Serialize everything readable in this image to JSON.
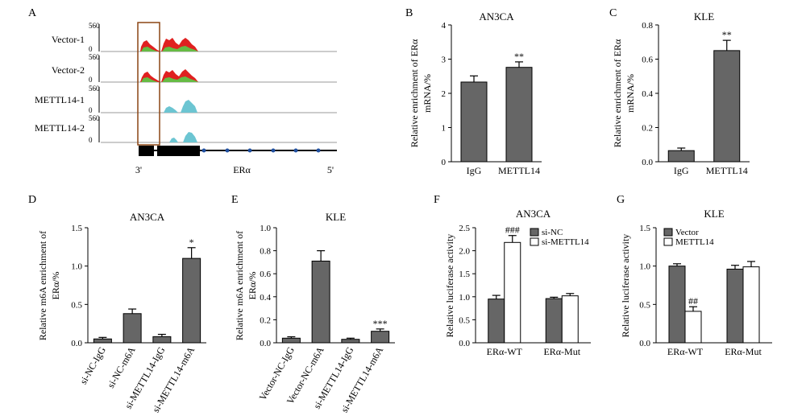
{
  "figure": {
    "panel_labels": [
      "A",
      "B",
      "C",
      "D",
      "E",
      "F",
      "G"
    ]
  },
  "panel_a": {
    "tracks": [
      {
        "name": "Vector-1",
        "max": "560",
        "min": "0",
        "color": "#e02020",
        "base_color": "#66bb44"
      },
      {
        "name": "Vector-2",
        "max": "560",
        "min": "0",
        "color": "#e02020",
        "base_color": "#66bb44"
      },
      {
        "name": "METTL14-1",
        "max": "560",
        "min": "0",
        "color": "#6cc5d2",
        "base_color": "#6cc5d2"
      },
      {
        "name": "METTL14-2",
        "max": "560",
        "min": "0",
        "color": "#6cc5d2",
        "base_color": "#6cc5d2"
      }
    ],
    "gene_label": "ERα",
    "end_left": "3'",
    "end_right": "5'",
    "highlight_color": "#8b4513"
  },
  "chart_data": [
    {
      "id": "B",
      "type": "bar",
      "title": "AN3CA",
      "ylabel_lines": [
        "Relative enrichment of ERα",
        "mRNA/%"
      ],
      "ylim": [
        0,
        4
      ],
      "yticks": [
        "0",
        "1",
        "2",
        "3",
        "4"
      ],
      "categories": [
        "IgG",
        "METTL14"
      ],
      "series": [
        {
          "color": "#666666",
          "values": [
            2.33,
            2.76
          ],
          "errors": [
            0.18,
            0.16
          ],
          "marks": [
            "",
            "**"
          ]
        }
      ]
    },
    {
      "id": "C",
      "type": "bar",
      "title": "KLE",
      "ylabel_lines": [
        "Relative enrichment of ERα",
        "mRNA/%"
      ],
      "ylim": [
        0,
        0.8
      ],
      "yticks": [
        "0.0",
        "0.2",
        "0.4",
        "0.6",
        "0.8"
      ],
      "categories": [
        "IgG",
        "METTL14"
      ],
      "series": [
        {
          "color": "#666666",
          "values": [
            0.065,
            0.65
          ],
          "errors": [
            0.015,
            0.06
          ],
          "marks": [
            "",
            "**"
          ]
        }
      ]
    },
    {
      "id": "D",
      "type": "bar",
      "title": "AN3CA",
      "ylabel_lines": [
        "Relative m6A enrichment of",
        "ERα/%"
      ],
      "ylim": [
        0,
        1.5
      ],
      "yticks": [
        "0.0",
        "0.5",
        "1.0",
        "1.5"
      ],
      "categories": [
        "si-NC-IgG",
        "si-NC-m6A",
        "si-METTL14-IgG",
        "si-METTL14-m6A"
      ],
      "series": [
        {
          "color": "#666666",
          "values": [
            0.05,
            0.38,
            0.08,
            1.1
          ],
          "errors": [
            0.02,
            0.06,
            0.03,
            0.14
          ],
          "marks": [
            "",
            "",
            "",
            "*"
          ]
        }
      ]
    },
    {
      "id": "E",
      "type": "bar",
      "title": "KLE",
      "ylabel_lines": [
        "Relative m6A enrichment of",
        "ERα/%"
      ],
      "ylim": [
        0,
        1.0
      ],
      "yticks": [
        "0.0",
        "0.2",
        "0.4",
        "0.6",
        "0.8",
        "1.0"
      ],
      "categories": [
        "Vector-NC-IgG",
        "Vector-NC-m6A",
        "si-METTL14-IgG",
        "si-METTL14-m6A"
      ],
      "series": [
        {
          "color": "#666666",
          "values": [
            0.04,
            0.71,
            0.03,
            0.1
          ],
          "errors": [
            0.012,
            0.09,
            0.01,
            0.02
          ],
          "marks": [
            "",
            "",
            "",
            "***"
          ]
        }
      ]
    },
    {
      "id": "F",
      "type": "bar",
      "title": "AN3CA",
      "ylabel_lines": [
        "Relative luciferase activity"
      ],
      "ylim": [
        0,
        2.5
      ],
      "yticks": [
        "0.0",
        "0.5",
        "1.0",
        "1.5",
        "2.0",
        "2.5"
      ],
      "categories": [
        "ERα-WT",
        "ERα-Mut"
      ],
      "legend": [
        "si-NC",
        "si-METTL14"
      ],
      "series": [
        {
          "name": "si-NC",
          "color": "#666666",
          "values": [
            0.95,
            0.96
          ],
          "errors": [
            0.08,
            0.03
          ],
          "marks": [
            "",
            ""
          ]
        },
        {
          "name": "si-METTL14",
          "color": "#ffffff",
          "values": [
            2.18,
            1.02
          ],
          "errors": [
            0.15,
            0.05
          ],
          "marks": [
            "###",
            ""
          ]
        }
      ]
    },
    {
      "id": "G",
      "type": "bar",
      "title": "KLE",
      "ylabel_lines": [
        "Relative luciferase activity"
      ],
      "ylim": [
        0,
        1.5
      ],
      "yticks": [
        "0.0",
        "0.5",
        "1.0",
        "1.5"
      ],
      "categories": [
        "ERα-WT",
        "ERα-Mut"
      ],
      "legend": [
        "Vector",
        "METTL14"
      ],
      "series": [
        {
          "name": "Vector",
          "color": "#666666",
          "values": [
            1.0,
            0.96
          ],
          "errors": [
            0.03,
            0.05
          ],
          "marks": [
            "",
            ""
          ]
        },
        {
          "name": "METTL14",
          "color": "#ffffff",
          "values": [
            0.41,
            0.99
          ],
          "errors": [
            0.06,
            0.07
          ],
          "marks": [
            "##",
            ""
          ]
        }
      ]
    }
  ]
}
